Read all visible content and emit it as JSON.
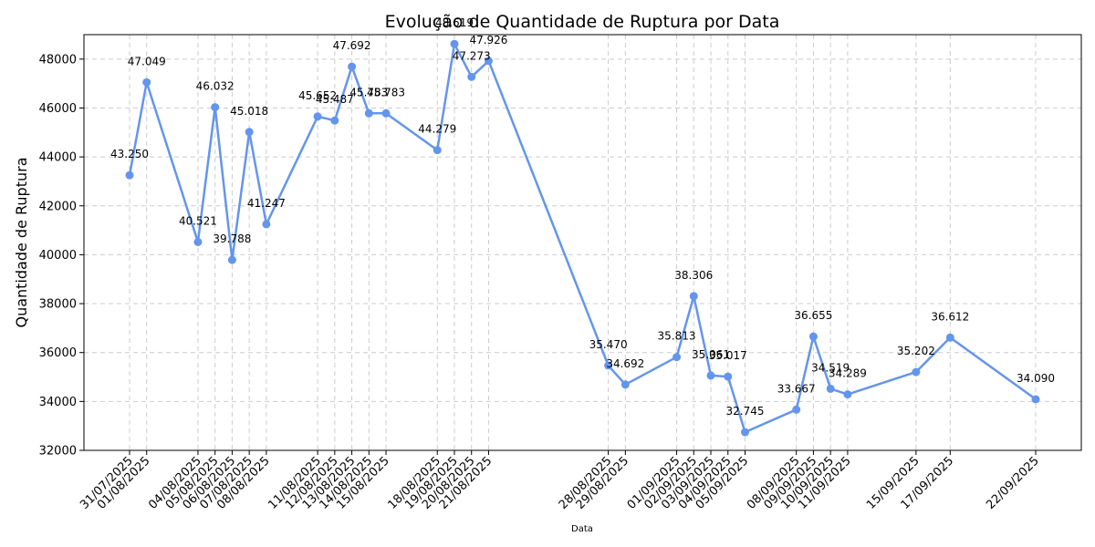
{
  "chart_data": {
    "type": "line",
    "title": "Evolução de Quantidade de Ruptura por Data",
    "xlabel": "Data",
    "ylabel": "Quantidade de Ruptura",
    "ylim": [
      32000,
      49000
    ],
    "yticks": [
      32000,
      34000,
      36000,
      38000,
      40000,
      42000,
      44000,
      46000,
      48000
    ],
    "grid": true,
    "color": "#6495ED",
    "points": [
      {
        "x": "31/07/2025",
        "y": 43250,
        "label": "43.250"
      },
      {
        "x": "01/08/2025",
        "y": 47049,
        "label": "47.049"
      },
      {
        "x": "04/08/2025",
        "y": 40521,
        "label": "40.521"
      },
      {
        "x": "05/08/2025",
        "y": 46032,
        "label": "46.032"
      },
      {
        "x": "06/08/2025",
        "y": 39788,
        "label": "39.788"
      },
      {
        "x": "07/08/2025",
        "y": 45018,
        "label": "45.018"
      },
      {
        "x": "08/08/2025",
        "y": 41247,
        "label": "41.247"
      },
      {
        "x": "11/08/2025",
        "y": 45652,
        "label": "45.652"
      },
      {
        "x": "12/08/2025",
        "y": 45487,
        "label": "45.487"
      },
      {
        "x": "13/08/2025",
        "y": 47692,
        "label": "47.692"
      },
      {
        "x": "14/08/2025",
        "y": 45783,
        "label": "45.783"
      },
      {
        "x": "15/08/2025",
        "y": 45783,
        "label": "45.783"
      },
      {
        "x": "18/08/2025",
        "y": 44279,
        "label": "44.279"
      },
      {
        "x": "19/08/2025",
        "y": 48619,
        "label": "48.619"
      },
      {
        "x": "20/08/2025",
        "y": 47273,
        "label": "47.273"
      },
      {
        "x": "21/08/2025",
        "y": 47926,
        "label": "47.926"
      },
      {
        "x": "28/08/2025",
        "y": 35470,
        "label": "35.470"
      },
      {
        "x": "29/08/2025",
        "y": 34692,
        "label": "34.692"
      },
      {
        "x": "01/09/2025",
        "y": 35813,
        "label": "35.813"
      },
      {
        "x": "02/09/2025",
        "y": 38306,
        "label": "38.306"
      },
      {
        "x": "03/09/2025",
        "y": 35061,
        "label": "35.061"
      },
      {
        "x": "04/09/2025",
        "y": 35017,
        "label": "35.017"
      },
      {
        "x": "05/09/2025",
        "y": 32745,
        "label": "32.745"
      },
      {
        "x": "08/09/2025",
        "y": 33667,
        "label": "33.667"
      },
      {
        "x": "09/09/2025",
        "y": 36655,
        "label": "36.655"
      },
      {
        "x": "10/09/2025",
        "y": 34519,
        "label": "34.519"
      },
      {
        "x": "11/09/2025",
        "y": 34289,
        "label": "34.289"
      },
      {
        "x": "15/09/2025",
        "y": 35202,
        "label": "35.202"
      },
      {
        "x": "17/09/2025",
        "y": 36612,
        "label": "36.612"
      },
      {
        "x": "22/09/2025",
        "y": 34090,
        "label": "34.090"
      }
    ]
  }
}
